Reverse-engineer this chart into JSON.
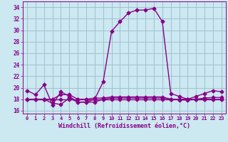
{
  "x": [
    0,
    1,
    2,
    3,
    4,
    5,
    6,
    7,
    8,
    9,
    10,
    11,
    12,
    13,
    14,
    15,
    16,
    17,
    18,
    19,
    20,
    21,
    22,
    23
  ],
  "y_main": [
    19.5,
    18.8,
    20.5,
    17.0,
    19.3,
    18.5,
    17.5,
    17.5,
    18.0,
    21.0,
    29.8,
    31.5,
    33.0,
    33.5,
    33.5,
    33.8,
    31.5,
    19.0,
    18.5,
    18.0,
    18.5,
    19.0,
    19.5,
    19.3
  ],
  "y_flat1": [
    18.0,
    18.0,
    18.0,
    18.0,
    18.0,
    18.0,
    18.0,
    18.0,
    18.0,
    18.0,
    18.0,
    18.0,
    18.0,
    18.0,
    18.0,
    18.0,
    18.0,
    18.0,
    18.0,
    18.0,
    18.0,
    18.0,
    18.0,
    18.0
  ],
  "y_flat2": [
    18.0,
    18.0,
    18.0,
    17.3,
    17.1,
    18.2,
    17.5,
    17.5,
    17.5,
    18.0,
    18.2,
    18.2,
    18.2,
    18.2,
    18.2,
    18.2,
    18.2,
    18.0,
    17.9,
    17.85,
    18.0,
    18.2,
    18.3,
    18.3
  ],
  "y_flat3": [
    18.0,
    18.0,
    18.0,
    18.0,
    18.8,
    18.8,
    18.0,
    18.0,
    18.2,
    18.2,
    18.4,
    18.4,
    18.4,
    18.4,
    18.4,
    18.4,
    18.4,
    18.0,
    18.0,
    18.0,
    18.0,
    18.0,
    18.0,
    18.0
  ],
  "line_color": "#880088",
  "bg_color": "#cce8f0",
  "grid_color": "#99bbcc",
  "ylabel_values": [
    16,
    18,
    20,
    22,
    24,
    26,
    28,
    30,
    32,
    34
  ],
  "ylim": [
    15.5,
    35.0
  ],
  "xlim": [
    -0.5,
    23.5
  ],
  "xlabel": "Windchill (Refroidissement éolien,°C)",
  "xtick_labels": [
    "0",
    "1",
    "2",
    "3",
    "4",
    "5",
    "6",
    "7",
    "8",
    "9",
    "10",
    "11",
    "12",
    "13",
    "14",
    "15",
    "16",
    "17",
    "18",
    "19",
    "20",
    "21",
    "22",
    "23"
  ],
  "marker": "D",
  "markersize": 2.5,
  "linewidth": 1.0
}
